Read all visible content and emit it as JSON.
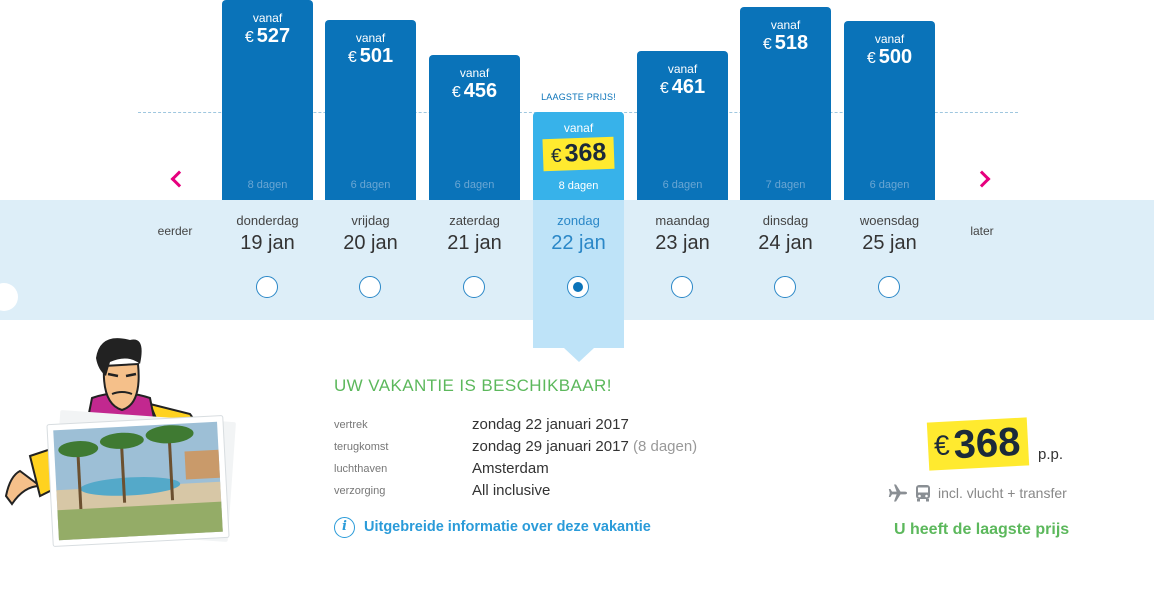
{
  "calendar": {
    "earlier_label": "eerder",
    "later_label": "later",
    "lowest_price_label": "LAAGSTE PRIJS!",
    "from_label": "vanaf",
    "currency": "€",
    "days": [
      {
        "weekday": "donderdag",
        "date": "19 jan",
        "price": 527,
        "price_text": "527",
        "duration": "8 dagen",
        "selected": false
      },
      {
        "weekday": "vrijdag",
        "date": "20 jan",
        "price": 501,
        "price_text": "501",
        "duration": "6 dagen",
        "selected": false
      },
      {
        "weekday": "zaterdag",
        "date": "21 jan",
        "price": 456,
        "price_text": "456",
        "duration": "6 dagen",
        "selected": false
      },
      {
        "weekday": "zondag",
        "date": "22 jan",
        "price": 368,
        "price_text": "368",
        "duration": "8 dagen",
        "selected": true
      },
      {
        "weekday": "maandag",
        "date": "23 jan",
        "price": 461,
        "price_text": "461",
        "duration": "6 dagen",
        "selected": false
      },
      {
        "weekday": "dinsdag",
        "date": "24 jan",
        "price": 518,
        "price_text": "518",
        "duration": "7 dagen",
        "selected": false
      },
      {
        "weekday": "woensdag",
        "date": "25 jan",
        "price": 500,
        "price_text": "500",
        "duration": "6 dagen",
        "selected": false
      }
    ]
  },
  "details": {
    "title": "UW VAKANTIE IS BESCHIKBAAR!",
    "rows": [
      {
        "label": "vertrek",
        "value": "zondag 22 januari 2017",
        "extra": ""
      },
      {
        "label": "terugkomst",
        "value": "zondag 29 januari 2017",
        "extra": "(8 dagen)"
      },
      {
        "label": "luchthaven",
        "value": "Amsterdam",
        "extra": ""
      },
      {
        "label": "verzorging",
        "value": "All inclusive",
        "extra": ""
      }
    ],
    "info_link": "Uitgebreide informatie over deze vakantie"
  },
  "summary": {
    "currency": "€",
    "price": "368",
    "per_person": "p.p.",
    "included": "incl. vlucht + transfer",
    "lowest_text": "U heeft de laagste prijs"
  },
  "colors": {
    "bar": "#0a73b9",
    "bar_selected": "#37b2ea",
    "highlight": "#ffea2f",
    "accent_green": "#5cb85c",
    "arrow_pink": "#e6007e",
    "link_blue": "#2a9bd9"
  },
  "icons": [
    "chevron-left-icon",
    "chevron-right-icon",
    "info-icon",
    "plane-icon",
    "bus-icon",
    "mascot-illustration"
  ]
}
